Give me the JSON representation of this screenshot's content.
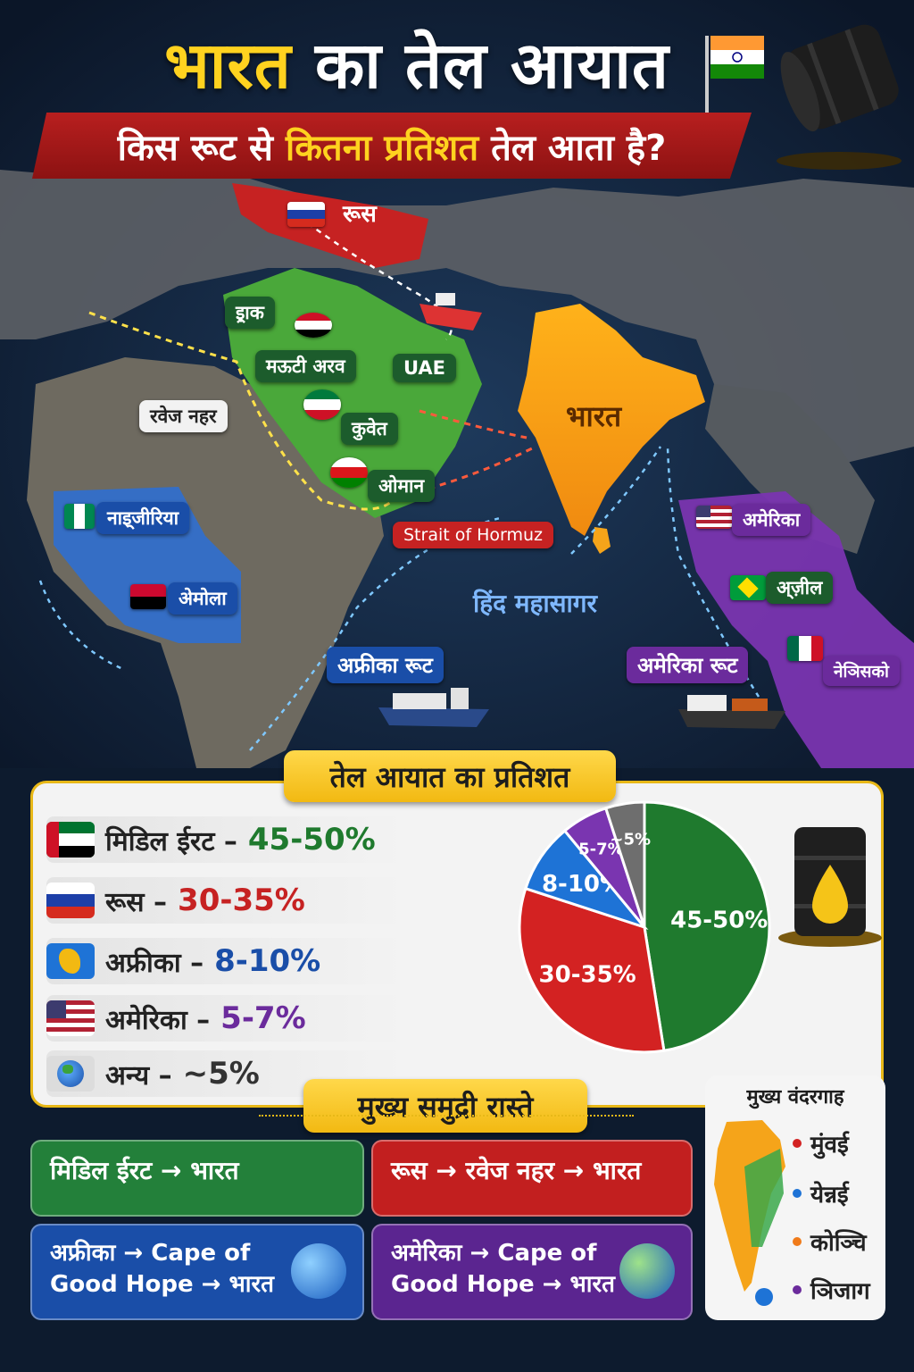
{
  "title": {
    "part1": "भारत",
    "part2": "का तेल आयात"
  },
  "subtitle": {
    "part1": "किस रूट से",
    "part2": "कितना प्रतिशत",
    "part3": "तेल आता है?"
  },
  "map": {
    "labels": {
      "russia": "रूस",
      "iraq": "इ्राक",
      "saudi": "मऊटी अरव",
      "uae": "UAE",
      "kuwait": "कुवेत",
      "oman": "ओमान",
      "suez": "रवेज नहर",
      "india": "भारत",
      "hormuz": "Strait of Hormuz",
      "nigeria": "नाइ्जीरिया",
      "angola": "अेमोला",
      "ocean": "हिंद महासागर",
      "africa_route": "अफ्रीका रूट",
      "america_route": "अमेरिका रूट",
      "usa": "अमेरिका",
      "brazil": "अ्ज़ील",
      "mexico": "नेञिसको"
    }
  },
  "percent": {
    "header": "तेल आयात का प्रतिशत",
    "rows": [
      {
        "label": "मिडिल ईरट –",
        "value": "45-50%",
        "color": "#1f7a2e"
      },
      {
        "label": "रूस –",
        "value": "30-35%",
        "color": "#c62222"
      },
      {
        "label": "अफ्रीका –",
        "value": "8-10%",
        "color": "#1a4ea8"
      },
      {
        "label": "अमेरिका –",
        "value": "5-7%",
        "color": "#6b2b9c"
      },
      {
        "label": "अन्य –",
        "value": "~5%",
        "color": "#333333"
      }
    ]
  },
  "chart_data": {
    "type": "pie",
    "slices": [
      {
        "label": "45-50%",
        "value": 47.5,
        "color": "#1f7a2e"
      },
      {
        "label": "30-35%",
        "value": 32.5,
        "color": "#d32222"
      },
      {
        "label": "8-10%",
        "value": 9,
        "color": "#1e73d6"
      },
      {
        "label": "5-7%",
        "value": 6,
        "color": "#7a35b0"
      },
      {
        "label": "~5%",
        "value": 5,
        "color": "#6e6e6e"
      }
    ]
  },
  "routes": {
    "header": "मुख्य समुद्री रास्ते",
    "cards": [
      {
        "text": "मिडिल ईरट → भारत",
        "color": "#23803a"
      },
      {
        "text": "रूस → रवेज नहर → भारत",
        "color": "#c21f1f"
      },
      {
        "line1": "अफ्रीका → Cape of",
        "line2": "Good Hope → भारत",
        "color": "#1a4ea8"
      },
      {
        "line1": "अमेरिका → Cape of",
        "line2": "Good Hope → भारत",
        "color": "#5b2590"
      }
    ]
  },
  "ports": {
    "title": "मुख्य वंदरगाह",
    "items": [
      {
        "name": "मुंवई",
        "color": "#d32222"
      },
      {
        "name": "येन्नई",
        "color": "#1e73d6"
      },
      {
        "name": "कोञ्चि",
        "color": "#f07b1a"
      },
      {
        "name": "ञिजाग",
        "color": "#6b2b9c"
      }
    ]
  }
}
